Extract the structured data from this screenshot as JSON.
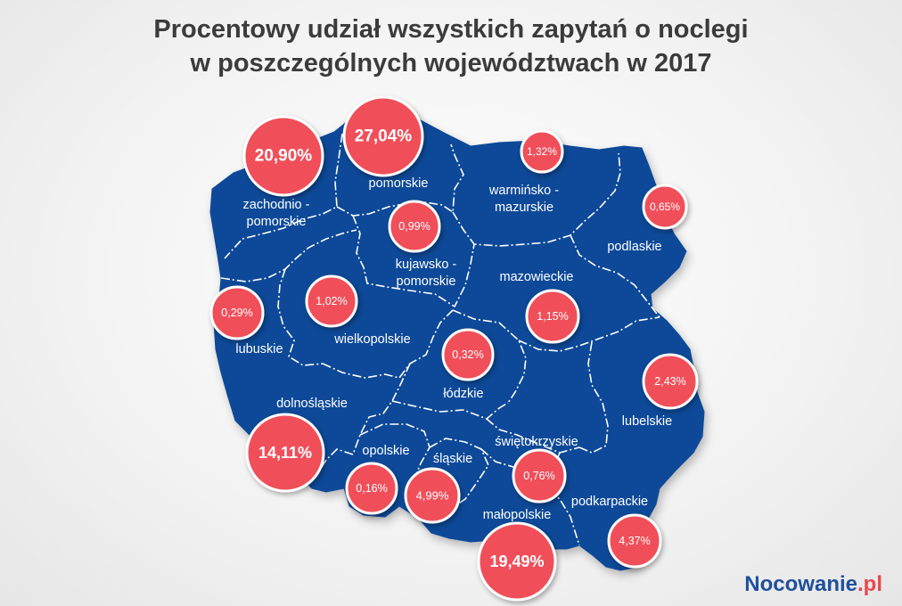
{
  "title": {
    "line1": "Procentowy udział wszystkich zapytań o noclegi",
    "line2": "w poszczególnych województwach w 2017"
  },
  "colors": {
    "map_fill": "#0f4a98",
    "border": "#ffffff",
    "bubble": "#f0505a",
    "bubble_edge": "#ffffff",
    "title": "#3b3b3b",
    "brand_blue": "#1f4f9c",
    "brand_red": "#e8474f"
  },
  "regions": [
    {
      "id": "zachodniopomorskie",
      "label1": "zachodnio -",
      "label2": "pomorskie",
      "share_label": "20,90%",
      "share": 20.9
    },
    {
      "id": "pomorskie",
      "label1": "pomorskie",
      "label2": "",
      "share_label": "27,04%",
      "share": 27.04
    },
    {
      "id": "warminsko-mazurskie",
      "label1": "warmińsko -",
      "label2": "mazurskie",
      "share_label": "1,32%",
      "share": 1.32
    },
    {
      "id": "podlaskie",
      "label1": "podlaskie",
      "label2": "",
      "share_label": "0,65%",
      "share": 0.65
    },
    {
      "id": "kujawsko-pomorskie",
      "label1": "kujawsko -",
      "label2": "pomorskie",
      "share_label": "0,99%",
      "share": 0.99
    },
    {
      "id": "lubuskie",
      "label1": "lubuskie",
      "label2": "",
      "share_label": "0,29%",
      "share": 0.29
    },
    {
      "id": "wielkopolskie",
      "label1": "wielkopolskie",
      "label2": "",
      "share_label": "1,02%",
      "share": 1.02
    },
    {
      "id": "mazowieckie",
      "label1": "mazowieckie",
      "label2": "",
      "share_label": "1,15%",
      "share": 1.15
    },
    {
      "id": "lodzkie",
      "label1": "łódzkie",
      "label2": "",
      "share_label": "0,32%",
      "share": 0.32
    },
    {
      "id": "dolnoslaskie",
      "label1": "dolnośląskie",
      "label2": "",
      "share_label": "14,11%",
      "share": 14.11
    },
    {
      "id": "opolskie",
      "label1": "opolskie",
      "label2": "",
      "share_label": "0,16%",
      "share": 0.16
    },
    {
      "id": "slaskie",
      "label1": "śląskie",
      "label2": "",
      "share_label": "4,99%",
      "share": 4.99
    },
    {
      "id": "swietokrzyskie",
      "label1": "świętokrzyskie",
      "label2": "",
      "share_label": "0,76%",
      "share": 0.76
    },
    {
      "id": "lubelskie",
      "label1": "lubelskie",
      "label2": "",
      "share_label": "2,43%",
      "share": 2.43
    },
    {
      "id": "malopolskie",
      "label1": "małopolskie",
      "label2": "",
      "share_label": "19,49%",
      "share": 19.49
    },
    {
      "id": "podkarpackie",
      "label1": "podkarpackie",
      "label2": "",
      "share_label": "4,37%",
      "share": 4.37
    }
  ],
  "brand": {
    "name": "Nocowanie",
    "tld": ".pl"
  }
}
